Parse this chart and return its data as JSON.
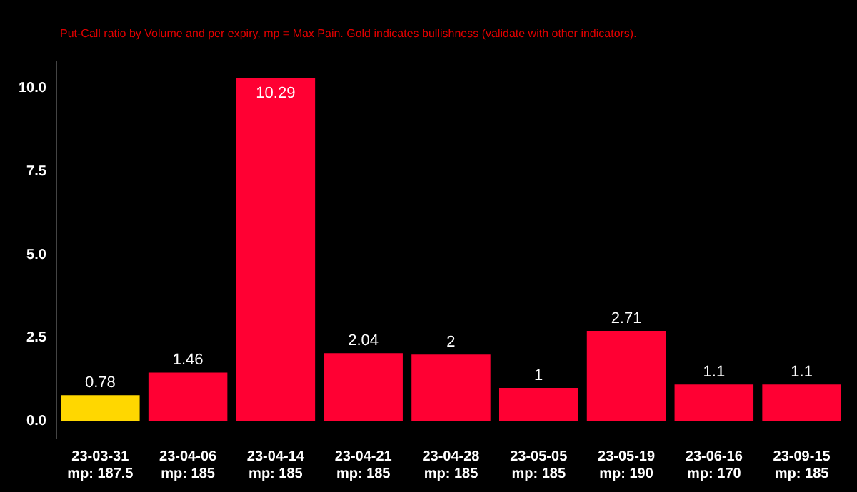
{
  "chart_data": {
    "type": "bar",
    "subtitle": "Put-Call ratio by Volume and per expiry, mp = Max Pain. Gold indicates bullishness (validate with other indicators).",
    "categories": [
      "23-03-31\nmp: 187.5",
      "23-04-06\nmp: 185",
      "23-04-14\nmp: 185",
      "23-04-21\nmp: 185",
      "23-04-28\nmp: 185",
      "23-05-05\nmp: 185",
      "23-05-19\nmp: 190",
      "23-06-16\nmp: 170",
      "23-09-15\nmp: 185"
    ],
    "values": [
      0.78,
      1.46,
      10.29,
      2.04,
      2,
      1,
      2.71,
      1.1,
      1.1
    ],
    "colors": [
      "#ffd700",
      "#ff0033",
      "#ff0033",
      "#ff0033",
      "#ff0033",
      "#ff0033",
      "#ff0033",
      "#ff0033",
      "#ff0033"
    ],
    "ylim": [
      -0.5,
      10.8
    ],
    "yticks": [
      {
        "value": 0,
        "label": "0.0"
      },
      {
        "value": 2.5,
        "label": "2.5"
      },
      {
        "value": 5,
        "label": "5.0"
      },
      {
        "value": 7.5,
        "label": "7.5"
      },
      {
        "value": 10,
        "label": "10.0"
      }
    ],
    "grid": false,
    "legend": false,
    "data_labels": true
  }
}
